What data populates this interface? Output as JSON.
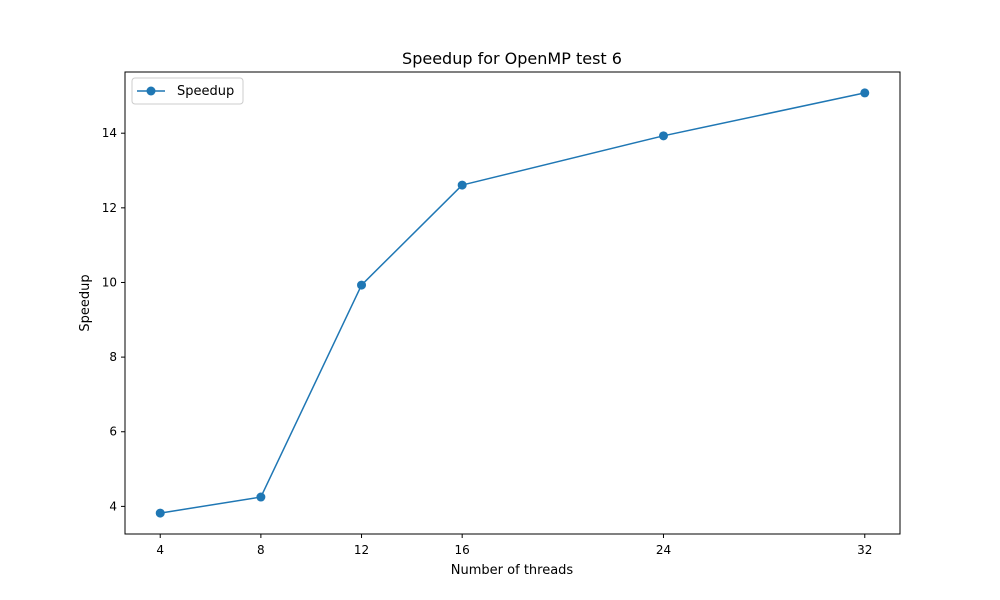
{
  "chart_data": {
    "type": "line",
    "title": "Speedup for OpenMP test 6",
    "xlabel": "Number of threads",
    "ylabel": "Speedup",
    "x": [
      4,
      8,
      12,
      16,
      24,
      32
    ],
    "series": [
      {
        "name": "Speedup",
        "values": [
          3.82,
          4.25,
          9.93,
          12.61,
          13.93,
          15.08
        ],
        "color": "#1f77b4",
        "marker": "circle"
      }
    ],
    "xticks": [
      4,
      8,
      12,
      16,
      24,
      32
    ],
    "yticks": [
      4,
      6,
      8,
      10,
      12,
      14
    ],
    "xlim": [
      2.6,
      33.4
    ],
    "ylim": [
      3.26,
      15.64
    ],
    "grid": false,
    "legend": "upper-left"
  }
}
